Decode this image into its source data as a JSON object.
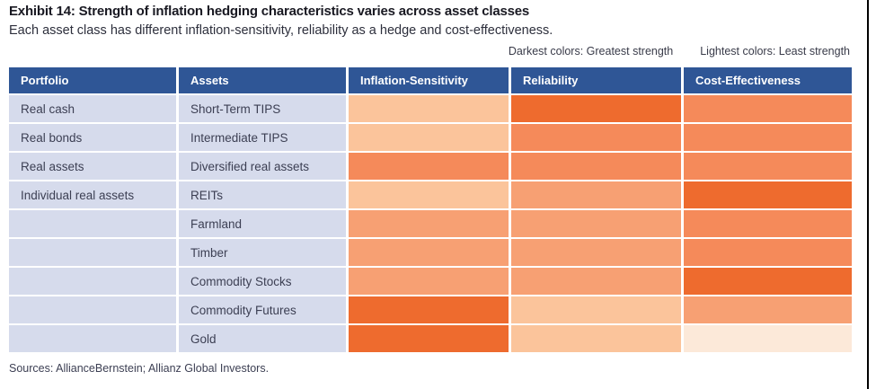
{
  "title": "Exhibit 14: Strength of inflation hedging characteristics varies across asset classes",
  "subtitle": "Each asset class has different inflation-sensitivity, reliability as a hedge and cost-effectiveness.",
  "legend": {
    "darkest_label": "Darkest colors: Greatest strength",
    "lightest_label": "Lightest colors: Least strength"
  },
  "table": {
    "headers": [
      "Portfolio",
      "Assets",
      "Inflation-Sensitivity",
      "Reliability",
      "Cost-Effectiveness"
    ],
    "rows": [
      {
        "portfolio": "Real cash",
        "asset": "Short-Term TIPS",
        "inflation_sensitivity": 2,
        "reliability": 5,
        "cost_effectiveness": 4
      },
      {
        "portfolio": "Real bonds",
        "asset": "Intermediate TIPS",
        "inflation_sensitivity": 2,
        "reliability": 4,
        "cost_effectiveness": 4
      },
      {
        "portfolio": "Real assets",
        "asset": "Diversified real assets",
        "inflation_sensitivity": 4,
        "reliability": 4,
        "cost_effectiveness": 4
      },
      {
        "portfolio": "Individual real assets",
        "asset": "REITs",
        "inflation_sensitivity": 2,
        "reliability": 3,
        "cost_effectiveness": 5
      },
      {
        "portfolio": "",
        "asset": "Farmland",
        "inflation_sensitivity": 3,
        "reliability": 3,
        "cost_effectiveness": 4
      },
      {
        "portfolio": "",
        "asset": "Timber",
        "inflation_sensitivity": 3,
        "reliability": 3,
        "cost_effectiveness": 4
      },
      {
        "portfolio": "",
        "asset": "Commodity Stocks",
        "inflation_sensitivity": 3,
        "reliability": 3,
        "cost_effectiveness": 5
      },
      {
        "portfolio": "",
        "asset": "Commodity Futures",
        "inflation_sensitivity": 5,
        "reliability": 2,
        "cost_effectiveness": 3
      },
      {
        "portfolio": "",
        "asset": "Gold",
        "inflation_sensitivity": 5,
        "reliability": 2,
        "cost_effectiveness": 1
      }
    ]
  },
  "sources": "Sources: AllianceBernstein; Allianz Global Investors.",
  "colors": {
    "header_bg": "#2f5696",
    "row_label_bg": "#d6dbec",
    "strength_scale": {
      "1": "#fce9d9",
      "2": "#fbc49b",
      "3": "#f7a073",
      "4": "#f58a5a",
      "5": "#ee6b2e"
    }
  },
  "chart_data": {
    "type": "heatmap",
    "title": "Exhibit 14: Strength of inflation hedging characteristics varies across asset classes",
    "subtitle": "Each asset class has different inflation-sensitivity, reliability as a hedge and cost-effectiveness.",
    "value_columns": [
      "Inflation-Sensitivity",
      "Reliability",
      "Cost-Effectiveness"
    ],
    "value_scale": "strength level 1 (lightest, least strength) to 5 (darkest, greatest strength)",
    "rows": [
      {
        "portfolio": "Real cash",
        "asset": "Short-Term TIPS",
        "values": [
          2,
          5,
          4
        ]
      },
      {
        "portfolio": "Real bonds",
        "asset": "Intermediate TIPS",
        "values": [
          2,
          4,
          4
        ]
      },
      {
        "portfolio": "Real assets",
        "asset": "Diversified real assets",
        "values": [
          4,
          4,
          4
        ]
      },
      {
        "portfolio": "Individual real assets",
        "asset": "REITs",
        "values": [
          2,
          3,
          5
        ]
      },
      {
        "portfolio": "",
        "asset": "Farmland",
        "values": [
          3,
          3,
          4
        ]
      },
      {
        "portfolio": "",
        "asset": "Timber",
        "values": [
          3,
          3,
          4
        ]
      },
      {
        "portfolio": "",
        "asset": "Commodity Stocks",
        "values": [
          3,
          3,
          5
        ]
      },
      {
        "portfolio": "",
        "asset": "Commodity Futures",
        "values": [
          5,
          2,
          3
        ]
      },
      {
        "portfolio": "",
        "asset": "Gold",
        "values": [
          5,
          2,
          1
        ]
      }
    ],
    "legend": [
      "Darkest colors: Greatest strength",
      "Lightest colors: Least strength"
    ],
    "palette": {
      "1": "#fce9d9",
      "2": "#fbc49b",
      "3": "#f7a073",
      "4": "#f58a5a",
      "5": "#ee6b2e"
    }
  }
}
